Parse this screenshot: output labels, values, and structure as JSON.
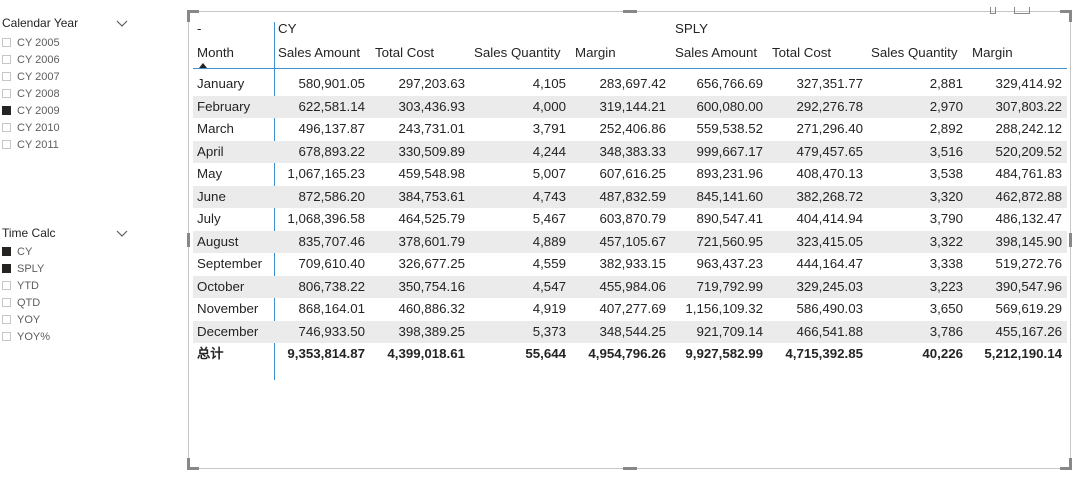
{
  "slicers": {
    "calendar_year": {
      "title": "Calendar Year",
      "options": [
        {
          "label": "CY 2005",
          "checked": false
        },
        {
          "label": "CY 2006",
          "checked": false
        },
        {
          "label": "CY 2007",
          "checked": false
        },
        {
          "label": "CY 2008",
          "checked": false
        },
        {
          "label": "CY 2009",
          "checked": true
        },
        {
          "label": "CY 2010",
          "checked": false
        },
        {
          "label": "CY 2011",
          "checked": false
        }
      ]
    },
    "time_calc": {
      "title": "Time Calc",
      "options": [
        {
          "label": "CY",
          "checked": true
        },
        {
          "label": "SPLY",
          "checked": true
        },
        {
          "label": "YTD",
          "checked": false
        },
        {
          "label": "QTD",
          "checked": false
        },
        {
          "label": "YOY",
          "checked": false
        },
        {
          "label": "YOY%",
          "checked": false
        }
      ]
    }
  },
  "matrix": {
    "row_header_top": "-",
    "row_header": "Month",
    "groups": [
      "CY",
      "SPLY"
    ],
    "columns": [
      "Sales Amount",
      "Total Cost",
      "Sales Quantity",
      "Margin",
      "Sales Amount",
      "Total Cost",
      "Sales Quantity",
      "Margin"
    ],
    "rows": [
      {
        "month": "January",
        "values": [
          "580,901.05",
          "297,203.63",
          "4,105",
          "283,697.42",
          "656,766.69",
          "327,351.77",
          "2,881",
          "329,414.92"
        ]
      },
      {
        "month": "February",
        "values": [
          "622,581.14",
          "303,436.93",
          "4,000",
          "319,144.21",
          "600,080.00",
          "292,276.78",
          "2,970",
          "307,803.22"
        ]
      },
      {
        "month": "March",
        "values": [
          "496,137.87",
          "243,731.01",
          "3,791",
          "252,406.86",
          "559,538.52",
          "271,296.40",
          "2,892",
          "288,242.12"
        ]
      },
      {
        "month": "April",
        "values": [
          "678,893.22",
          "330,509.89",
          "4,244",
          "348,383.33",
          "999,667.17",
          "479,457.65",
          "3,516",
          "520,209.52"
        ]
      },
      {
        "month": "May",
        "values": [
          "1,067,165.23",
          "459,548.98",
          "5,007",
          "607,616.25",
          "893,231.96",
          "408,470.13",
          "3,538",
          "484,761.83"
        ]
      },
      {
        "month": "June",
        "values": [
          "872,586.20",
          "384,753.61",
          "4,743",
          "487,832.59",
          "845,141.60",
          "382,268.72",
          "3,320",
          "462,872.88"
        ]
      },
      {
        "month": "July",
        "values": [
          "1,068,396.58",
          "464,525.79",
          "5,467",
          "603,870.79",
          "890,547.41",
          "404,414.94",
          "3,790",
          "486,132.47"
        ]
      },
      {
        "month": "August",
        "values": [
          "835,707.46",
          "378,601.79",
          "4,889",
          "457,105.67",
          "721,560.95",
          "323,415.05",
          "3,322",
          "398,145.90"
        ]
      },
      {
        "month": "September",
        "values": [
          "709,610.40",
          "326,677.25",
          "4,559",
          "382,933.15",
          "963,437.23",
          "444,164.47",
          "3,338",
          "519,272.76"
        ]
      },
      {
        "month": "October",
        "values": [
          "806,738.22",
          "350,754.16",
          "4,547",
          "455,984.06",
          "719,792.99",
          "329,245.03",
          "3,223",
          "390,547.96"
        ]
      },
      {
        "month": "November",
        "values": [
          "868,164.01",
          "460,886.32",
          "4,919",
          "407,277.69",
          "1,156,109.32",
          "586,490.03",
          "3,650",
          "569,619.29"
        ]
      },
      {
        "month": "December",
        "values": [
          "746,933.50",
          "398,389.25",
          "5,373",
          "348,544.25",
          "921,709.14",
          "466,541.88",
          "3,786",
          "455,167.26"
        ]
      }
    ],
    "total": {
      "label": "总计",
      "values": [
        "9,353,814.87",
        "4,399,018.61",
        "55,644",
        "4,954,796.26",
        "9,927,582.99",
        "4,715,392.85",
        "40,226",
        "5,212,190.14"
      ]
    }
  },
  "colors": {
    "accent": "#3d8fd0",
    "alt_row": "#ebebeb",
    "checked": "#252423"
  }
}
